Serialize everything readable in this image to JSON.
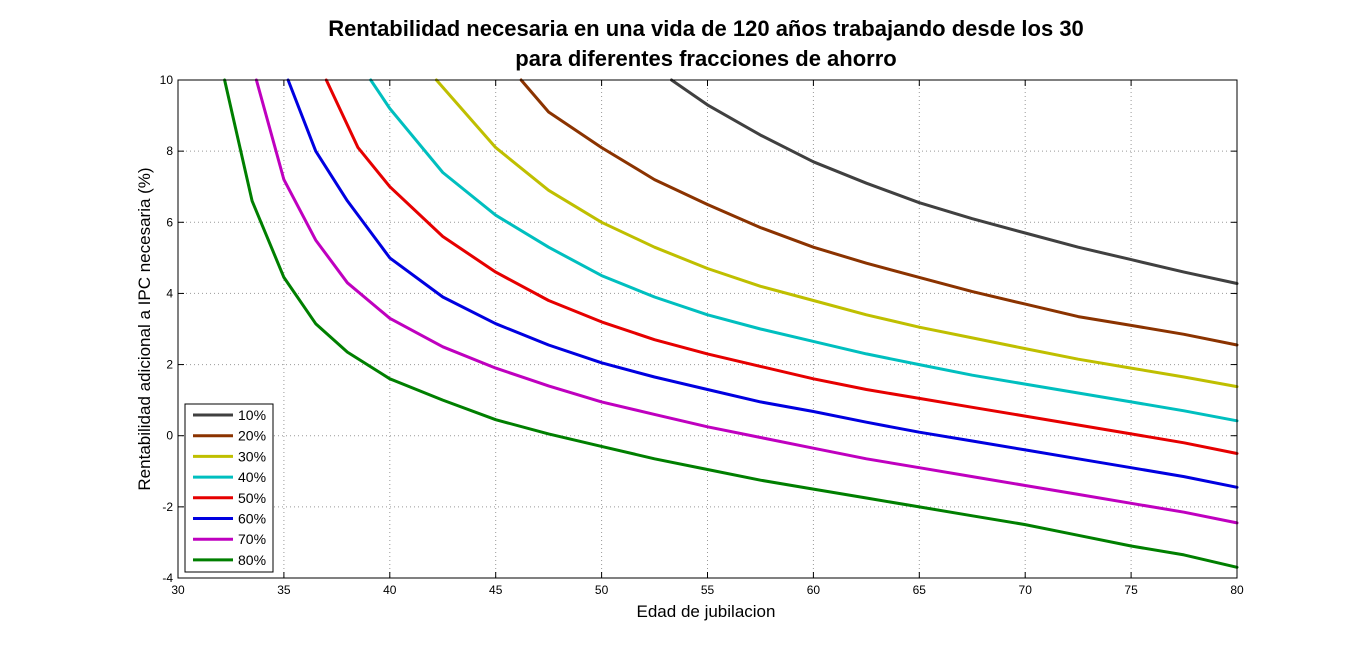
{
  "chart_data": {
    "type": "line",
    "title_lines": [
      "Rentabilidad necesaria en una vida de 120 años trabajando desde los 30",
      "para diferentes fracciones de ahorro"
    ],
    "xlabel": "Edad de jubilacion",
    "ylabel": "Rentabilidad adicional a IPC necesaria (%)",
    "xlim": [
      30,
      80
    ],
    "ylim": [
      -4,
      10
    ],
    "xticks": [
      30,
      35,
      40,
      45,
      50,
      55,
      60,
      65,
      70,
      75,
      80
    ],
    "yticks": [
      -4,
      -2,
      0,
      2,
      4,
      6,
      8,
      10
    ],
    "grid": true,
    "legend_position": "bottom-left",
    "series": [
      {
        "name": "10%",
        "color": "#404040",
        "x": [
          53.3,
          55,
          57.5,
          60,
          62.5,
          65,
          67.5,
          70,
          72.5,
          75,
          77.5,
          80
        ],
        "y": [
          10,
          9.3,
          8.45,
          7.7,
          7.1,
          6.55,
          6.1,
          5.7,
          5.3,
          4.95,
          4.6,
          4.28
        ]
      },
      {
        "name": "20%",
        "color": "#8b3300",
        "x": [
          46.2,
          47.5,
          50,
          52.5,
          55,
          57.5,
          60,
          62.5,
          65,
          67.5,
          70,
          72.5,
          75,
          77.5,
          80
        ],
        "y": [
          10,
          9.1,
          8.1,
          7.2,
          6.5,
          5.85,
          5.3,
          4.85,
          4.45,
          4.05,
          3.7,
          3.35,
          3.1,
          2.85,
          2.55
        ]
      },
      {
        "name": "30%",
        "color": "#bfbf00",
        "x": [
          42.2,
          45,
          47.5,
          50,
          52.5,
          55,
          57.5,
          60,
          62.5,
          65,
          67.5,
          70,
          72.5,
          75,
          77.5,
          80
        ],
        "y": [
          10,
          8.1,
          6.9,
          6.0,
          5.3,
          4.7,
          4.2,
          3.8,
          3.4,
          3.05,
          2.75,
          2.45,
          2.15,
          1.9,
          1.65,
          1.38
        ]
      },
      {
        "name": "40%",
        "color": "#00bfbf",
        "x": [
          39.1,
          40,
          42.5,
          45,
          47.5,
          50,
          52.5,
          55,
          57.5,
          60,
          62.5,
          65,
          67.5,
          70,
          72.5,
          75,
          77.5,
          80
        ],
        "y": [
          10,
          9.2,
          7.4,
          6.2,
          5.3,
          4.5,
          3.9,
          3.4,
          3.0,
          2.65,
          2.3,
          2.0,
          1.7,
          1.45,
          1.2,
          0.95,
          0.7,
          0.42
        ]
      },
      {
        "name": "50%",
        "color": "#e60000",
        "x": [
          37.0,
          38.5,
          40,
          42.5,
          45,
          47.5,
          50,
          52.5,
          55,
          57.5,
          60,
          62.5,
          65,
          67.5,
          70,
          72.5,
          75,
          77.5,
          80
        ],
        "y": [
          10,
          8.1,
          7.0,
          5.6,
          4.6,
          3.8,
          3.2,
          2.7,
          2.3,
          1.95,
          1.6,
          1.3,
          1.05,
          0.8,
          0.55,
          0.3,
          0.05,
          -0.2,
          -0.5
        ]
      },
      {
        "name": "60%",
        "color": "#0000e0",
        "x": [
          35.2,
          36.5,
          38,
          40,
          42.5,
          45,
          47.5,
          50,
          52.5,
          55,
          57.5,
          60,
          62.5,
          65,
          67.5,
          70,
          72.5,
          75,
          77.5,
          80
        ],
        "y": [
          10,
          8.0,
          6.6,
          5.0,
          3.9,
          3.15,
          2.55,
          2.05,
          1.65,
          1.3,
          0.95,
          0.68,
          0.38,
          0.1,
          -0.15,
          -0.4,
          -0.65,
          -0.9,
          -1.15,
          -1.45
        ]
      },
      {
        "name": "70%",
        "color": "#bf00bf",
        "x": [
          33.7,
          35,
          36.5,
          38,
          40,
          42.5,
          45,
          47.5,
          50,
          52.5,
          55,
          57.5,
          60,
          62.5,
          65,
          67.5,
          70,
          72.5,
          75,
          77.5,
          80
        ],
        "y": [
          10,
          7.2,
          5.5,
          4.3,
          3.3,
          2.5,
          1.9,
          1.4,
          0.95,
          0.6,
          0.25,
          -0.05,
          -0.35,
          -0.65,
          -0.9,
          -1.15,
          -1.4,
          -1.65,
          -1.9,
          -2.15,
          -2.45
        ]
      },
      {
        "name": "80%",
        "color": "#007f00",
        "x": [
          32.2,
          33.5,
          35,
          36.5,
          38,
          40,
          42.5,
          45,
          47.5,
          50,
          52.5,
          55,
          57.5,
          60,
          62.5,
          65,
          67.5,
          70,
          72.5,
          75,
          77.5,
          80
        ],
        "y": [
          10,
          6.6,
          4.45,
          3.15,
          2.35,
          1.6,
          1.0,
          0.45,
          0.05,
          -0.3,
          -0.65,
          -0.95,
          -1.25,
          -1.5,
          -1.75,
          -2.0,
          -2.25,
          -2.5,
          -2.8,
          -3.1,
          -3.35,
          -3.7
        ]
      }
    ]
  }
}
